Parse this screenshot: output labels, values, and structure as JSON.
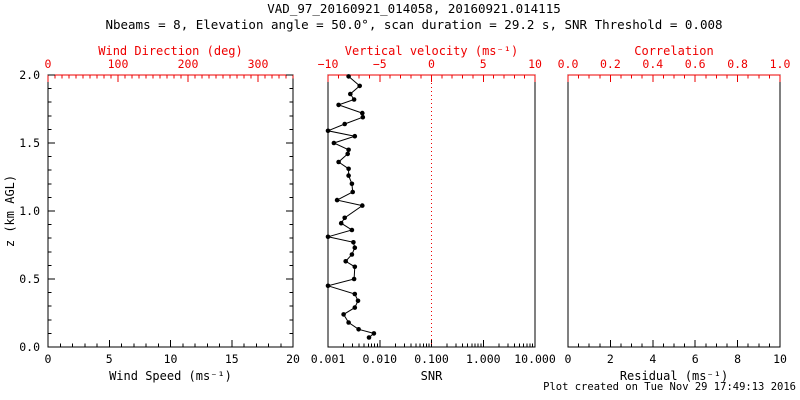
{
  "header": {
    "title": "VAD_97_20160921_014058, 20160921.014115",
    "subtitle": "Nbeams = 8, Elevation angle = 50.0°, scan duration = 29.2 s, SNR Threshold = 0.008"
  },
  "footer": {
    "created_text": "Plot created on Tue Nov 29 17:49:13 2016"
  },
  "colors": {
    "background": "#ffffff",
    "axis_black": "#000000",
    "accent_red": "#ee0000",
    "data_black": "#000000"
  },
  "chart_data": {
    "type": "scatter",
    "grid": false,
    "panels": [
      {
        "name": "panel-wind",
        "x_bottom": {
          "label": "Wind Speed (ms⁻¹)",
          "min": 0,
          "max": 20,
          "minor_step": 1,
          "ticks": [
            {
              "v": 0,
              "l": "0"
            },
            {
              "v": 5,
              "l": "5"
            },
            {
              "v": 10,
              "l": "10"
            },
            {
              "v": 15,
              "l": "15"
            },
            {
              "v": 20,
              "l": "20"
            }
          ]
        },
        "x_top": {
          "label": "Wind Direction (deg)",
          "min": 0,
          "max": 350,
          "minor_step": 10,
          "ticks": [
            {
              "v": 0,
              "l": "0"
            },
            {
              "v": 100,
              "l": "100"
            },
            {
              "v": 200,
              "l": "200"
            },
            {
              "v": 300,
              "l": "300"
            }
          ]
        },
        "y_scale": {
          "min": 0,
          "max": 2
        },
        "y_left": {
          "label": "z (km AGL)",
          "min": 0,
          "max": 2,
          "minor_step": 0.1,
          "ticks": [
            {
              "v": 0,
              "l": "0.0"
            },
            {
              "v": 0.5,
              "l": "0.5"
            },
            {
              "v": 1,
              "l": "1.0"
            },
            {
              "v": 1.5,
              "l": "1.5"
            },
            {
              "v": 2,
              "l": "2.0"
            }
          ]
        },
        "series": []
      },
      {
        "name": "panel-snr",
        "x_bottom": {
          "label": "SNR",
          "scale": "log",
          "min": 0.001,
          "max": 10,
          "ticks": [
            {
              "v": 0.001,
              "l": "0.001"
            },
            {
              "v": 0.01,
              "l": "0.010"
            },
            {
              "v": 0.1,
              "l": "0.100"
            },
            {
              "v": 1,
              "l": "1.000"
            },
            {
              "v": 10,
              "l": "10.000"
            }
          ]
        },
        "x_top": {
          "label": "Vertical velocity (ms⁻¹)",
          "min": -10,
          "max": 10,
          "minor_step": 1,
          "ticks": [
            {
              "v": -10,
              "l": "−10"
            },
            {
              "v": -5,
              "l": "−5"
            },
            {
              "v": 0,
              "l": "0"
            },
            {
              "v": 5,
              "l": "5"
            },
            {
              "v": 10,
              "l": "10"
            }
          ]
        },
        "y_scale": {
          "min": 0,
          "max": 2
        },
        "zero_line": {
          "axis": "top",
          "value": 0,
          "style": "dotted"
        },
        "series": [
          {
            "name": "snr-profile",
            "marker": "circle",
            "points": [
              [
                0.0025,
                1.99
              ],
              [
                0.0041,
                1.92
              ],
              [
                0.0027,
                1.86
              ],
              [
                0.0032,
                1.82
              ],
              [
                0.0016,
                1.78
              ],
              [
                0.0046,
                1.72
              ],
              [
                0.0047,
                1.69
              ],
              [
                0.0021,
                1.64
              ],
              [
                0.001,
                1.59
              ],
              [
                0.0033,
                1.55
              ],
              [
                0.0013,
                1.5
              ],
              [
                0.0025,
                1.45
              ],
              [
                0.0024,
                1.42
              ],
              [
                0.0016,
                1.36
              ],
              [
                0.0025,
                1.31
              ],
              [
                0.0025,
                1.26
              ],
              [
                0.0029,
                1.2
              ],
              [
                0.003,
                1.14
              ],
              [
                0.0015,
                1.08
              ],
              [
                0.0046,
                1.04
              ],
              [
                0.0021,
                0.95
              ],
              [
                0.0018,
                0.91
              ],
              [
                0.0029,
                0.86
              ],
              [
                0.001,
                0.81
              ],
              [
                0.0031,
                0.77
              ],
              [
                0.0033,
                0.73
              ],
              [
                0.0029,
                0.68
              ],
              [
                0.0022,
                0.63
              ],
              [
                0.0033,
                0.59
              ],
              [
                0.0032,
                0.5
              ],
              [
                0.001,
                0.45
              ],
              [
                0.0033,
                0.39
              ],
              [
                0.0038,
                0.34
              ],
              [
                0.0033,
                0.29
              ],
              [
                0.002,
                0.24
              ],
              [
                0.0025,
                0.18
              ],
              [
                0.0039,
                0.13
              ],
              [
                0.0077,
                0.1
              ],
              [
                0.0062,
                0.07
              ]
            ]
          }
        ]
      },
      {
        "name": "panel-residual",
        "x_bottom": {
          "label": "Residual (ms⁻¹)",
          "min": 0,
          "max": 10,
          "minor_step": 0.5,
          "ticks": [
            {
              "v": 0,
              "l": "0"
            },
            {
              "v": 2,
              "l": "2"
            },
            {
              "v": 4,
              "l": "4"
            },
            {
              "v": 6,
              "l": "6"
            },
            {
              "v": 8,
              "l": "8"
            },
            {
              "v": 10,
              "l": "10"
            }
          ]
        },
        "x_top": {
          "label": "Correlation",
          "min": 0,
          "max": 1,
          "minor_step": 0.05,
          "ticks": [
            {
              "v": 0,
              "l": "0.0"
            },
            {
              "v": 0.2,
              "l": "0.2"
            },
            {
              "v": 0.4,
              "l": "0.4"
            },
            {
              "v": 0.6,
              "l": "0.6"
            },
            {
              "v": 0.8,
              "l": "0.8"
            },
            {
              "v": 1,
              "l": "1.0"
            }
          ]
        },
        "y_scale": {
          "min": 0,
          "max": 2
        },
        "series": []
      }
    ]
  }
}
